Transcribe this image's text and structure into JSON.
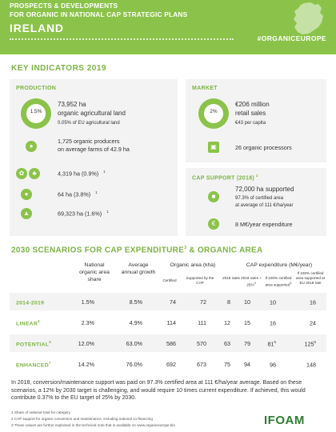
{
  "header": {
    "line1": "PROSPECTS & DEVELOPMENTS",
    "line2": "FOR ORGANIC IN NATIONAL CAP STRATEGIC PLANS",
    "country": "IRELAND",
    "hashtag": "#ORGANICEUROPE"
  },
  "key_indicators": {
    "title": "KEY INDICATORS 2019",
    "production": {
      "title": "PRODUCTION",
      "donut_label": "1.5%",
      "donut_fraction": 0.015,
      "area": "73,952 ha",
      "area_label": "organic agricultural land",
      "eu_share": "0.05% of EU agricultural land",
      "producers": "1,725 organic producers",
      "producers_sub": "on average farms of 42.9 ha",
      "crops": [
        {
          "icon": "leaf-icon",
          "value": "4,319 ha (0.9%)",
          "fn": "1"
        },
        {
          "icon": "apple-icon",
          "value": "64 ha (3.8%)",
          "fn": "1"
        },
        {
          "icon": "grassland-icon",
          "value": "69,323 ha (1.6%)",
          "fn": "1"
        }
      ]
    },
    "market": {
      "title": "MARKET",
      "donut_label": "2%",
      "donut_fraction": 0.02,
      "sales": "€206 million",
      "sales_label": "retail sales",
      "per_capita": "€43 per capita",
      "processors": "26 organic processors"
    },
    "cap_support": {
      "title": "CAP SUPPORT (2018)",
      "fn": "2",
      "supported": "72,000 ha supported",
      "sub1": "97.3% of certified area",
      "sub2": "at average of 111 €/ha/year",
      "expenditure": "8 M€/year expenditure"
    }
  },
  "scenarios": {
    "title": "2030 SCENARIOS FOR CAP EXPENDITURE",
    "title_fn": "3",
    "title_tail": "& ORGANIC AREA",
    "headers": {
      "share": "National organic area share",
      "growth": "Average annual growth",
      "area_group": "Organic area (kha)",
      "certified": "Certified",
      "supported": "Supported by the CAP",
      "exp_group": "CAP expenditure (M€/year)",
      "rates2018": "2018 rates",
      "rates25": "2018 rates + 25%",
      "rates25_fn": "3",
      "certified_supported": "If 100% certified area supported",
      "certified_supported_fn": "3",
      "eu_rate": "If 100% certified area supported at EU 2018 rate"
    },
    "rows": [
      {
        "label": "2014-2019",
        "fn": "",
        "share": "1.5%",
        "growth": "8.5%",
        "certified": "74",
        "supported": "72",
        "r2018": "8",
        "r25": "10",
        "full": "10",
        "full_fn": "",
        "eu": "16",
        "eu_fn": ""
      },
      {
        "label": "LINEAR",
        "fn": "4",
        "share": "2.3%",
        "growth": "4.9%",
        "certified": "114",
        "supported": "111",
        "r2018": "12",
        "r25": "15",
        "full": "16",
        "full_fn": "",
        "eu": "24",
        "eu_fn": ""
      },
      {
        "label": "POTENTIAL",
        "fn": "5",
        "share": "12.0%",
        "growth": "63.0%",
        "certified": "586",
        "supported": "570",
        "r2018": "63",
        "r25": "79",
        "full": "81",
        "full_fn": "6",
        "eu": "125",
        "eu_fn": "6"
      },
      {
        "label": "ENHANCED",
        "fn": "7",
        "share": "14.2%",
        "growth": "76.0%",
        "certified": "692",
        "supported": "673",
        "r2018": "75",
        "r25": "94",
        "full": "96",
        "full_fn": "",
        "eu": "148",
        "eu_fn": ""
      }
    ]
  },
  "paragraph": "In 2018, conversion/maintenance support was paid on 97.3% certified area at 111 €/ha/year average. Based on these scenarios, a 12% by 2030 target is challenging, and would require 10 times current expenditure. If achieved, this would contribute 0.37% to the EU target of 25% by 2030.",
  "footnotes": [
    "1 Share of national total for category",
    "2 CAP support for organic conversion and maintenance, including national co-financing",
    "3 These values are further explained in the technical note that is available on www.organiceurope.bio"
  ],
  "logo": "IFOAM",
  "colors": {
    "accent": "#8bc34a",
    "accent_dark": "#7cb342",
    "panel": "#f3f3f3"
  }
}
